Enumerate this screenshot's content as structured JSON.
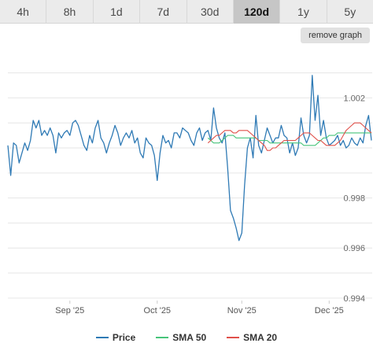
{
  "range_tabs": [
    {
      "label": "4h",
      "active": false
    },
    {
      "label": "8h",
      "active": false
    },
    {
      "label": "1d",
      "active": false
    },
    {
      "label": "7d",
      "active": false
    },
    {
      "label": "30d",
      "active": false
    },
    {
      "label": "120d",
      "active": true
    },
    {
      "label": "1y",
      "active": false
    },
    {
      "label": "5y",
      "active": false
    }
  ],
  "remove_graph_label": "remove graph",
  "legend": [
    {
      "label": "Price",
      "color": "#2f7ab5"
    },
    {
      "label": "SMA 50",
      "color": "#47c47a"
    },
    {
      "label": "SMA 20",
      "color": "#e0504a"
    }
  ],
  "chart_data": {
    "type": "line",
    "title": "",
    "xlabel": "",
    "ylabel": "",
    "x_ticks": [
      "Sep '25",
      "Oct '25",
      "Nov '25",
      "Dec '25"
    ],
    "y_ticks": [
      "0.994",
      "0.996",
      "0.998",
      "1.002"
    ],
    "ylim": [
      0.9939,
      1.0039
    ],
    "grid": true,
    "legend_position": "bottom",
    "series": [
      {
        "name": "Price",
        "color": "#2f7ab5",
        "values": [
          1.0001,
          0.9989,
          1.0002,
          1.0001,
          0.9994,
          0.9998,
          1.0002,
          0.9999,
          1.0003,
          1.0011,
          1.0008,
          1.0011,
          1.0005,
          1.0007,
          1.0005,
          1.0008,
          1.0005,
          0.9998,
          1.0006,
          1.0004,
          1.0006,
          1.0007,
          1.0005,
          1.001,
          1.0011,
          1.0009,
          1.0005,
          1.0001,
          0.9999,
          1.0005,
          1.0002,
          1.0008,
          1.0011,
          1.0004,
          1.0002,
          0.9998,
          1.0002,
          1.0005,
          1.0009,
          1.0006,
          1.0001,
          1.0004,
          1.0006,
          1.0004,
          1.0007,
          1.0002,
          1.0004,
          0.9998,
          0.9996,
          1.0004,
          1.0002,
          1.0001,
          0.9997,
          0.9987,
          0.9998,
          1.0005,
          1.0002,
          1.0003,
          1.0,
          1.0006,
          1.0006,
          1.0004,
          1.0008,
          1.0007,
          1.0006,
          1.0003,
          1.0001,
          1.0006,
          1.0008,
          1.0003,
          1.0006,
          1.0007,
          1.0003,
          1.0016,
          1.0008,
          1.0004,
          1.0002,
          1.0006,
          0.9992,
          0.9975,
          0.9972,
          0.9968,
          0.9963,
          0.9966,
          0.9985,
          1.0,
          1.0004,
          0.9996,
          1.0013,
          1.0001,
          0.9998,
          1.0003,
          1.0008,
          1.0005,
          1.0002,
          1.0004,
          1.0004,
          1.0009,
          1.0005,
          1.0004,
          0.9998,
          1.0002,
          0.9997,
          1.0,
          1.0012,
          1.0005,
          1.0002,
          1.0005,
          1.0029,
          1.0011,
          1.0021,
          1.0005,
          1.0011,
          1.0004,
          1.0001,
          1.0002,
          1.0003,
          1.0005,
          1.0001,
          1.0003,
          1.0,
          1.0001,
          1.0004,
          1.0002,
          1.0001,
          1.0004,
          1.0002,
          1.0009,
          1.0013,
          1.0003
        ]
      },
      {
        "name": "SMA 50",
        "color": "#47c47a",
        "values": [
          1.0004,
          1.0003,
          1.0002,
          1.0002,
          1.0002,
          1.0003,
          1.0004,
          1.0005,
          1.0005,
          1.0005,
          1.0004,
          1.0004,
          1.0004,
          1.0004,
          1.0004,
          1.0004,
          1.0004,
          1.0004,
          1.0003,
          1.0003,
          1.0003,
          1.0003,
          1.0002,
          1.0002,
          1.0002,
          1.0002,
          1.0002,
          1.0002,
          1.0002,
          1.0002,
          1.0002,
          1.0002,
          1.0002,
          1.0002,
          1.0001,
          1.0001,
          1.0001,
          1.0001,
          1.0001,
          1.0002,
          1.0003,
          1.0004,
          1.0004,
          1.0005,
          1.0005,
          1.0005,
          1.0006,
          1.0006,
          1.0006,
          1.0006,
          1.0006,
          1.0006,
          1.0006,
          1.0006,
          1.0006,
          1.0006,
          1.0006,
          1.0006,
          1.0006
        ]
      },
      {
        "name": "SMA 20",
        "color": "#e0504a",
        "values": [
          1.0002,
          1.0003,
          1.0004,
          1.0005,
          1.0005,
          1.0006,
          1.0007,
          1.0007,
          1.0007,
          1.0006,
          1.0006,
          1.0007,
          1.0007,
          1.0007,
          1.0007,
          1.0006,
          1.0005,
          1.0004,
          1.0003,
          1.0002,
          1.0001,
          0.9999,
          0.9999,
          1.0,
          1.0,
          1.0001,
          1.0002,
          1.0003,
          1.0003,
          1.0003,
          1.0003,
          1.0003,
          1.0004,
          1.0005,
          1.0006,
          1.0006,
          1.0006,
          1.0005,
          1.0004,
          1.0003,
          1.0003,
          1.0002,
          1.0001,
          1.0001,
          1.0001,
          1.0001,
          1.0002,
          1.0003,
          1.0005,
          1.0007,
          1.0008,
          1.0009,
          1.001,
          1.001,
          1.001,
          1.0009,
          1.0008,
          1.0007,
          1.0006
        ]
      }
    ]
  }
}
